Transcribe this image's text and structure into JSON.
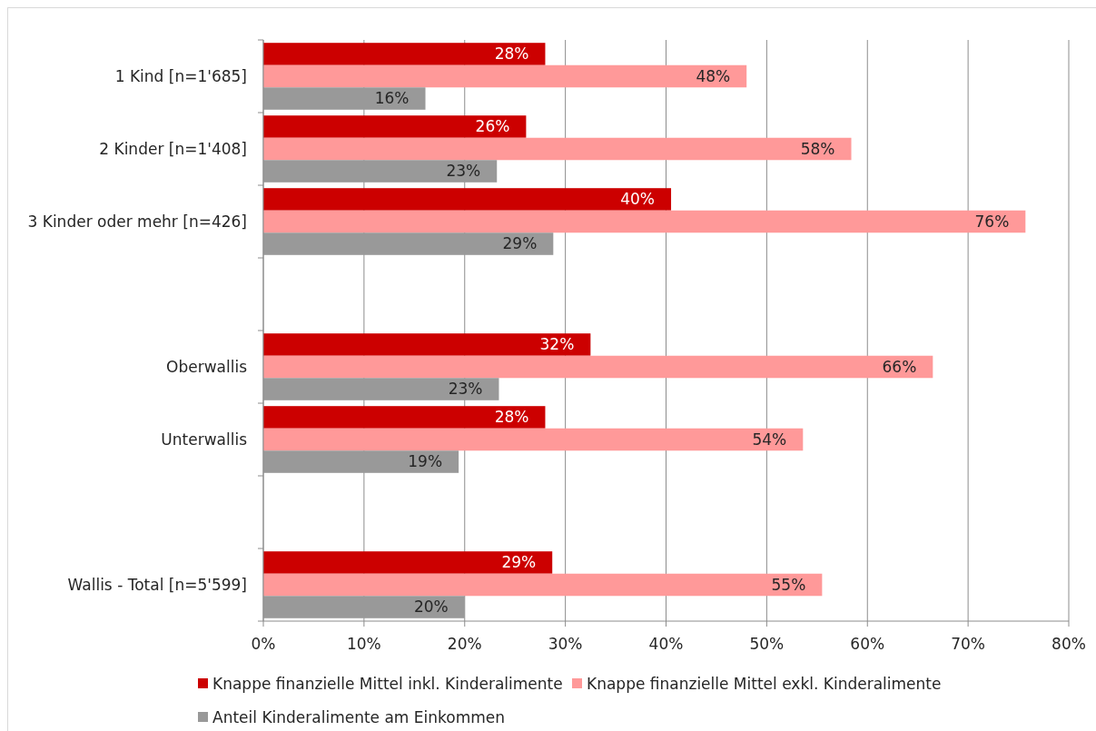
{
  "chart_data": {
    "type": "bar",
    "orientation": "horizontal",
    "categories": [
      "1 Kind [n=1'685]",
      "2 Kinder [n=1'408]",
      "3 Kinder oder mehr [n=426]",
      null,
      "Oberwallis",
      "Unterwallis",
      null,
      "Wallis - Total [n=5'599]"
    ],
    "series": [
      {
        "name": "Knappe finanzielle Mittel inkl. Kinderalimente",
        "color": "#cc0000",
        "values": [
          28.0,
          26.1,
          40.5,
          null,
          32.5,
          28.0,
          null,
          28.7
        ],
        "value_labels": [
          "28%",
          "26%",
          "40%",
          null,
          "32%",
          "28%",
          null,
          "29%"
        ]
      },
      {
        "name": "Knappe finanzielle Mittel exkl. Kinderalimente",
        "color": "#ff9999",
        "values": [
          48.0,
          58.4,
          75.7,
          null,
          66.5,
          53.6,
          null,
          55.5
        ],
        "value_labels": [
          "48%",
          "58%",
          "76%",
          null,
          "66%",
          "54%",
          null,
          "55%"
        ]
      },
      {
        "name": "Anteil Kinderalimente am Einkommen",
        "color": "#999999",
        "values": [
          16.1,
          23.2,
          28.8,
          null,
          23.4,
          19.4,
          null,
          20.0
        ],
        "value_labels": [
          "16%",
          "23%",
          "29%",
          null,
          "23%",
          "19%",
          null,
          "20%"
        ]
      }
    ],
    "xlim": [
      0,
      80
    ],
    "xticks": [
      {
        "value": 0,
        "label": "0%"
      },
      {
        "value": 10,
        "label": "10%"
      },
      {
        "value": 20,
        "label": "20%"
      },
      {
        "value": 30,
        "label": "30%"
      },
      {
        "value": 40,
        "label": "40%"
      },
      {
        "value": 50,
        "label": "50%"
      },
      {
        "value": 60,
        "label": "60%"
      },
      {
        "value": 70,
        "label": "70%"
      },
      {
        "value": 80,
        "label": "80%"
      }
    ],
    "grid": "x",
    "legend": "bottom"
  }
}
